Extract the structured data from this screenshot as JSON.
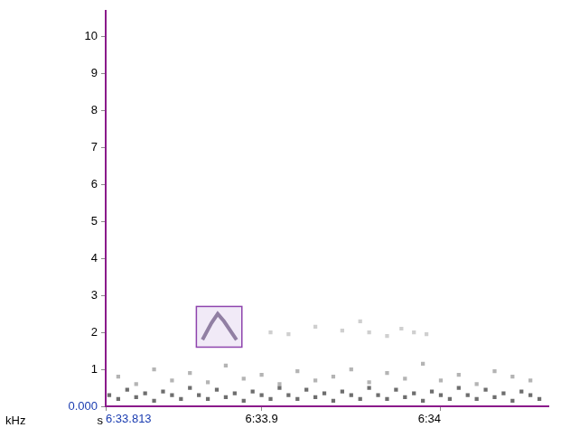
{
  "chart_data": {
    "type": "scatter",
    "x_label": "s",
    "y_label": "kHz",
    "xlim": [
      393.813,
      394.06
    ],
    "xticks": [
      {
        "value": 393.813,
        "label": "6:33.813"
      },
      {
        "value": 393.9,
        "label": "6:33.9"
      },
      {
        "value": 394.0,
        "label": "6:34"
      }
    ],
    "ylim": [
      0,
      10.7
    ],
    "yticks": [
      {
        "value": 0,
        "label": "0.000"
      },
      1,
      2,
      3,
      4,
      5,
      6,
      7,
      8,
      9,
      10
    ],
    "grid": false,
    "series": [
      {
        "type": "scatter",
        "marker": "square",
        "color": "#6e6e6e",
        "values": [
          [
            393.815,
            0.3
          ],
          [
            393.82,
            0.2
          ],
          [
            393.825,
            0.45
          ],
          [
            393.83,
            0.25
          ],
          [
            393.835,
            0.35
          ],
          [
            393.84,
            0.15
          ],
          [
            393.845,
            0.4
          ],
          [
            393.85,
            0.3
          ],
          [
            393.855,
            0.2
          ],
          [
            393.86,
            0.5
          ],
          [
            393.865,
            0.3
          ],
          [
            393.87,
            0.2
          ],
          [
            393.875,
            0.45
          ],
          [
            393.88,
            0.25
          ],
          [
            393.885,
            0.35
          ],
          [
            393.89,
            0.15
          ],
          [
            393.895,
            0.4
          ],
          [
            393.9,
            0.3
          ],
          [
            393.905,
            0.2
          ],
          [
            393.91,
            0.5
          ],
          [
            393.915,
            0.3
          ],
          [
            393.92,
            0.2
          ],
          [
            393.925,
            0.45
          ],
          [
            393.93,
            0.25
          ],
          [
            393.935,
            0.35
          ],
          [
            393.94,
            0.15
          ],
          [
            393.945,
            0.4
          ],
          [
            393.95,
            0.3
          ],
          [
            393.955,
            0.2
          ],
          [
            393.96,
            0.5
          ],
          [
            393.965,
            0.3
          ],
          [
            393.97,
            0.2
          ],
          [
            393.975,
            0.45
          ],
          [
            393.98,
            0.25
          ],
          [
            393.985,
            0.35
          ],
          [
            393.99,
            0.15
          ],
          [
            393.995,
            0.4
          ],
          [
            394.0,
            0.3
          ],
          [
            394.005,
            0.2
          ],
          [
            394.01,
            0.5
          ],
          [
            394.015,
            0.3
          ],
          [
            394.02,
            0.2
          ],
          [
            394.025,
            0.45
          ],
          [
            394.03,
            0.25
          ],
          [
            394.035,
            0.35
          ],
          [
            394.04,
            0.15
          ],
          [
            394.045,
            0.4
          ],
          [
            394.05,
            0.3
          ],
          [
            394.055,
            0.2
          ]
        ]
      },
      {
        "type": "scatter",
        "marker": "square",
        "color": "#b4b4b4",
        "values": [
          [
            393.82,
            0.8
          ],
          [
            393.83,
            0.6
          ],
          [
            393.84,
            1.0
          ],
          [
            393.85,
            0.7
          ],
          [
            393.86,
            0.9
          ],
          [
            393.87,
            0.65
          ],
          [
            393.88,
            1.1
          ],
          [
            393.89,
            0.75
          ],
          [
            393.9,
            0.85
          ],
          [
            393.91,
            0.6
          ],
          [
            393.92,
            0.95
          ],
          [
            393.93,
            0.7
          ],
          [
            393.94,
            0.8
          ],
          [
            393.95,
            1.0
          ],
          [
            393.96,
            0.65
          ],
          [
            393.97,
            0.9
          ],
          [
            393.98,
            0.75
          ],
          [
            393.99,
            1.15
          ],
          [
            394.0,
            0.7
          ],
          [
            394.01,
            0.85
          ],
          [
            394.02,
            0.6
          ],
          [
            394.03,
            0.95
          ],
          [
            394.04,
            0.8
          ],
          [
            394.05,
            0.7
          ]
        ]
      },
      {
        "type": "scatter",
        "marker": "square",
        "color": "#cfcfcf",
        "values": [
          [
            393.905,
            2.0
          ],
          [
            393.915,
            1.95
          ],
          [
            393.93,
            2.15
          ],
          [
            393.945,
            2.05
          ],
          [
            393.955,
            2.3
          ],
          [
            393.96,
            2.0
          ],
          [
            393.97,
            1.9
          ],
          [
            393.978,
            2.1
          ],
          [
            393.985,
            2.0
          ],
          [
            393.992,
            1.95
          ]
        ]
      },
      {
        "type": "line",
        "line_style": "solid",
        "color": "#8a7d99",
        "values": [
          [
            393.867,
            1.8
          ],
          [
            393.872,
            2.25
          ],
          [
            393.8755,
            2.5
          ],
          [
            393.879,
            2.3
          ],
          [
            393.886,
            1.8
          ]
        ]
      }
    ],
    "selection": {
      "x": [
        393.8636,
        393.889
      ],
      "y": [
        1.6,
        2.7
      ],
      "color": "#8e44ad"
    }
  }
}
